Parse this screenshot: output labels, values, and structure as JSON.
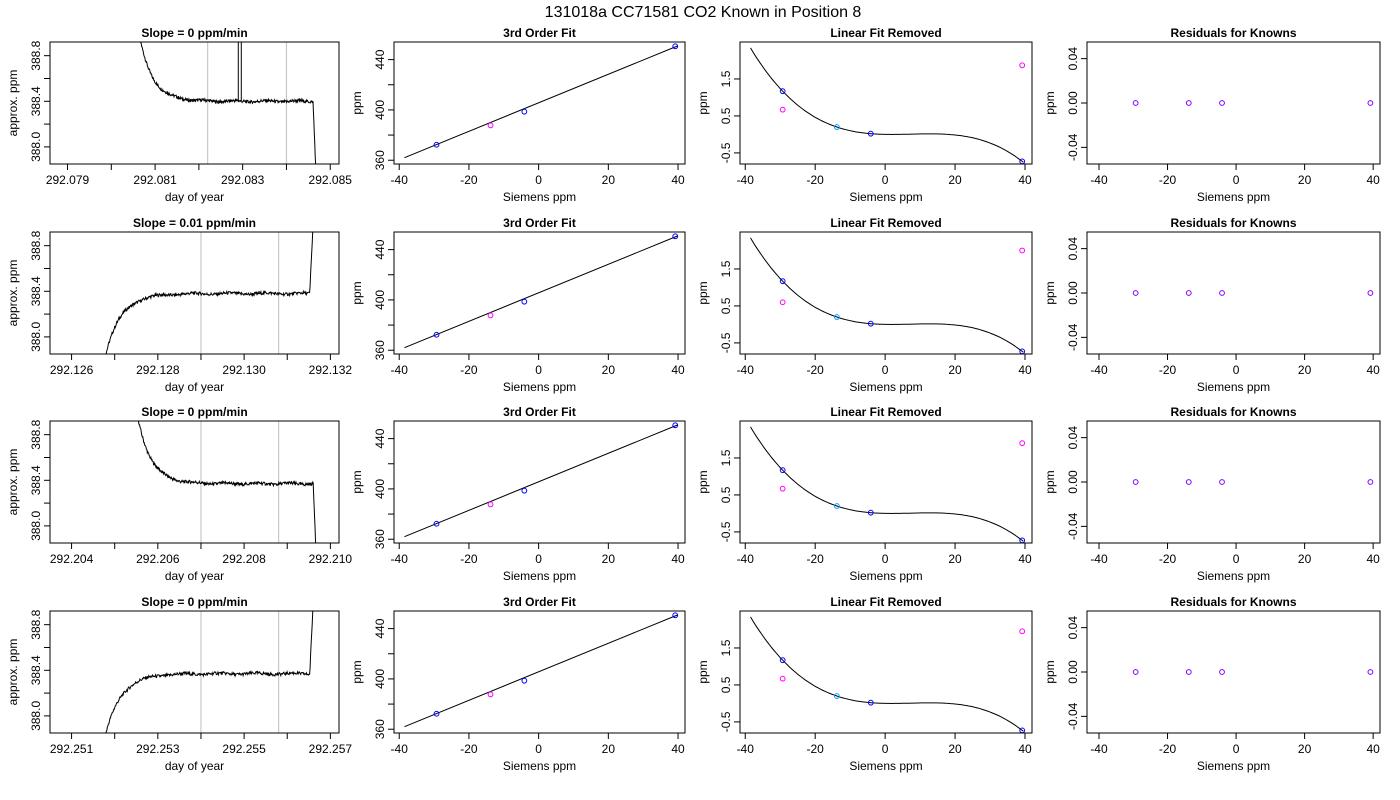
{
  "figure": {
    "title": "131018a     CC71581    CO2 Known in Position  8"
  },
  "colors": {
    "trace": "#000000",
    "grid_marker": "#c8c8c8",
    "point_blue": "#0000ff",
    "point_cyan": "#00a0ff",
    "point_magenta": "#ff00ff",
    "point_purple": "#8000ff"
  },
  "chart_data": [
    {
      "type": "line",
      "row": 1,
      "panel": "time",
      "title": "Slope =  0  ppm/min",
      "xlabel": "day of year",
      "ylabel": "approx. ppm",
      "xlim": [
        292.0786,
        292.0852
      ],
      "ylim": [
        387.85,
        388.92
      ],
      "xticks": [
        292.079,
        292.08,
        292.081,
        292.082,
        292.083,
        292.084,
        292.085
      ],
      "xtick_labels": [
        "292.079",
        "",
        "292.081",
        "",
        "292.083",
        "",
        "292.085"
      ],
      "yticks": [
        388.0,
        388.2,
        388.4,
        388.6,
        388.8
      ],
      "ytick_labels": [
        "388.0",
        "",
        "388.4",
        "",
        "388.8"
      ],
      "vlines": [
        292.0822,
        292.084
      ],
      "trace": {
        "x_start": 292.0805,
        "x_end": 292.0848,
        "rise": 0,
        "fall": 1,
        "plateau": 388.4,
        "spike_at": 292.0829
      }
    },
    {
      "type": "scatter",
      "row": 1,
      "panel": "fit",
      "title": "3rd Order Fit",
      "xlabel": "Siemens ppm",
      "ylabel": "ppm",
      "xlim": [
        -41.5,
        42
      ],
      "ylim": [
        357,
        454
      ],
      "xticks": [
        -40,
        -20,
        0,
        20,
        40
      ],
      "yticks": [
        360,
        380,
        400,
        420,
        440
      ],
      "ytick_labels": [
        "360",
        "",
        "400",
        "",
        "440"
      ],
      "points": [
        {
          "x": -29.3,
          "y": 372.3,
          "color": "blue"
        },
        {
          "x": -13.8,
          "y": 387.7,
          "color": "magenta"
        },
        {
          "x": -4.1,
          "y": 398.6,
          "color": "blue"
        },
        {
          "x": 39.2,
          "y": 450.6,
          "color": "blue"
        }
      ],
      "fit_line": {
        "x": [
          -38.5,
          40
        ],
        "y": [
          362.0,
          451.0
        ]
      }
    },
    {
      "type": "scatter",
      "row": 1,
      "panel": "linear_removed",
      "title": "Linear Fit Removed",
      "xlabel": "Siemens ppm",
      "ylabel": "ppm",
      "xlim": [
        -41.5,
        42
      ],
      "ylim": [
        -0.8,
        2.5
      ],
      "xticks": [
        -40,
        -20,
        0,
        20,
        40
      ],
      "yticks": [
        -0.5,
        0.5,
        1.5
      ],
      "points": [
        {
          "x": -29.3,
          "y": 1.17,
          "color": "blue"
        },
        {
          "x": -29.3,
          "y": 0.67,
          "color": "magenta"
        },
        {
          "x": -13.8,
          "y": 0.2,
          "color": "cyan"
        },
        {
          "x": -4.1,
          "y": 0.02,
          "color": "blue"
        },
        {
          "x": 39.2,
          "y": -0.73,
          "color": "blue"
        },
        {
          "x": 39.2,
          "y": 1.87,
          "color": "magenta"
        }
      ],
      "curve": {
        "x0": -38.5,
        "x1": 39.5,
        "anchors": [
          [
            -29.3,
            1.17
          ],
          [
            -13.8,
            0.2
          ],
          [
            -4.1,
            0.02
          ],
          [
            39.2,
            -0.73
          ]
        ]
      }
    },
    {
      "type": "scatter",
      "row": 1,
      "panel": "residuals",
      "title": "Residuals for Knowns",
      "xlabel": "Siemens ppm",
      "ylabel": "ppm",
      "xlim": [
        -43.5,
        42
      ],
      "ylim": [
        -0.055,
        0.055
      ],
      "xticks": [
        -40,
        -20,
        0,
        20,
        40
      ],
      "yticks": [
        -0.04,
        0.0,
        0.04
      ],
      "ytick_labels": [
        "-0.04",
        "0.00",
        "0.04"
      ],
      "points": [
        {
          "x": -29.3,
          "y": 0.0,
          "color": "purple"
        },
        {
          "x": -13.8,
          "y": 0.0,
          "color": "purple"
        },
        {
          "x": -4.1,
          "y": 0.0,
          "color": "purple"
        },
        {
          "x": 39.2,
          "y": 0.0,
          "color": "purple"
        }
      ]
    },
    {
      "type": "line",
      "row": 2,
      "panel": "time",
      "title": "Slope =  0.01  ppm/min",
      "xlabel": "day of year",
      "ylabel": "approx. ppm",
      "xlim": [
        292.1255,
        292.1322
      ],
      "ylim": [
        387.85,
        388.92
      ],
      "xticks": [
        292.126,
        292.127,
        292.128,
        292.129,
        292.13,
        292.131,
        292.132
      ],
      "xtick_labels": [
        "292.126",
        "",
        "292.128",
        "",
        "292.130",
        "",
        "292.132"
      ],
      "yticks": [
        388.0,
        388.2,
        388.4,
        388.6,
        388.8
      ],
      "ytick_labels": [
        "388.0",
        "",
        "388.4",
        "",
        "388.8"
      ],
      "vlines": [
        292.129,
        292.1308
      ],
      "trace": {
        "x_start": 292.1266,
        "x_end": 292.1317,
        "rise": 1,
        "fall": 0,
        "plateau": 388.38
      }
    },
    {
      "type": "scatter",
      "row": 2,
      "panel": "fit",
      "title": "3rd Order Fit",
      "xlabel": "Siemens ppm",
      "ylabel": "ppm",
      "xlim": [
        -41.5,
        42
      ],
      "ylim": [
        357,
        454
      ],
      "xticks": [
        -40,
        -20,
        0,
        20,
        40
      ],
      "yticks": [
        360,
        380,
        400,
        420,
        440
      ],
      "ytick_labels": [
        "360",
        "",
        "400",
        "",
        "440"
      ],
      "points": [
        {
          "x": -29.3,
          "y": 372.3,
          "color": "blue"
        },
        {
          "x": -13.8,
          "y": 387.7,
          "color": "magenta"
        },
        {
          "x": -4.1,
          "y": 398.6,
          "color": "blue"
        },
        {
          "x": 39.2,
          "y": 450.6,
          "color": "blue"
        }
      ],
      "fit_line": {
        "x": [
          -38.5,
          40
        ],
        "y": [
          362.0,
          451.0
        ]
      }
    },
    {
      "type": "scatter",
      "row": 2,
      "panel": "linear_removed",
      "title": "Linear Fit Removed",
      "xlabel": "Siemens ppm",
      "ylabel": "ppm",
      "xlim": [
        -41.5,
        42
      ],
      "ylim": [
        -0.8,
        2.5
      ],
      "xticks": [
        -40,
        -20,
        0,
        20,
        40
      ],
      "yticks": [
        -0.5,
        0.5,
        1.5
      ],
      "points": [
        {
          "x": -29.3,
          "y": 1.17,
          "color": "blue"
        },
        {
          "x": -29.3,
          "y": 0.6,
          "color": "magenta"
        },
        {
          "x": -13.8,
          "y": 0.2,
          "color": "cyan"
        },
        {
          "x": -4.1,
          "y": 0.02,
          "color": "blue"
        },
        {
          "x": 39.2,
          "y": -0.73,
          "color": "blue"
        },
        {
          "x": 39.2,
          "y": 2.0,
          "color": "magenta"
        }
      ],
      "curve": {
        "x0": -38.5,
        "x1": 39.5,
        "anchors": [
          [
            -29.3,
            1.17
          ],
          [
            -13.8,
            0.2
          ],
          [
            -4.1,
            0.02
          ],
          [
            39.2,
            -0.73
          ]
        ]
      }
    },
    {
      "type": "scatter",
      "row": 2,
      "panel": "residuals",
      "title": "Residuals for Knowns",
      "xlabel": "Siemens ppm",
      "ylabel": "ppm",
      "xlim": [
        -43.5,
        42
      ],
      "ylim": [
        -0.055,
        0.055
      ],
      "xticks": [
        -40,
        -20,
        0,
        20,
        40
      ],
      "yticks": [
        -0.04,
        0.0,
        0.04
      ],
      "ytick_labels": [
        "-0.04",
        "0.00",
        "0.04"
      ],
      "points": [
        {
          "x": -29.3,
          "y": 0.0,
          "color": "purple"
        },
        {
          "x": -13.8,
          "y": 0.0,
          "color": "purple"
        },
        {
          "x": -4.1,
          "y": 0.0,
          "color": "purple"
        },
        {
          "x": 39.2,
          "y": 0.0,
          "color": "purple"
        }
      ]
    },
    {
      "type": "line",
      "row": 3,
      "panel": "time",
      "title": "Slope =  0  ppm/min",
      "xlabel": "day of year",
      "ylabel": "approx. ppm",
      "xlim": [
        292.2035,
        292.2102
      ],
      "ylim": [
        387.85,
        388.92
      ],
      "xticks": [
        292.204,
        292.205,
        292.206,
        292.207,
        292.208,
        292.209,
        292.21
      ],
      "xtick_labels": [
        "292.204",
        "",
        "292.206",
        "",
        "292.208",
        "",
        "292.210"
      ],
      "yticks": [
        388.0,
        388.2,
        388.4,
        388.6,
        388.8
      ],
      "ytick_labels": [
        "388.0",
        "",
        "388.4",
        "",
        "388.8"
      ],
      "vlines": [
        292.207,
        292.2088
      ],
      "trace": {
        "x_start": 292.2054,
        "x_end": 292.2098,
        "rise": 0,
        "fall": 1,
        "plateau": 388.37
      }
    },
    {
      "type": "scatter",
      "row": 3,
      "panel": "fit",
      "title": "3rd Order Fit",
      "xlabel": "Siemens ppm",
      "ylabel": "ppm",
      "xlim": [
        -41.5,
        42
      ],
      "ylim": [
        357,
        454
      ],
      "xticks": [
        -40,
        -20,
        0,
        20,
        40
      ],
      "yticks": [
        360,
        380,
        400,
        420,
        440
      ],
      "ytick_labels": [
        "360",
        "",
        "400",
        "",
        "440"
      ],
      "points": [
        {
          "x": -29.3,
          "y": 372.3,
          "color": "blue"
        },
        {
          "x": -13.8,
          "y": 387.7,
          "color": "magenta"
        },
        {
          "x": -4.1,
          "y": 398.6,
          "color": "blue"
        },
        {
          "x": 39.2,
          "y": 450.6,
          "color": "blue"
        }
      ],
      "fit_line": {
        "x": [
          -38.5,
          40
        ],
        "y": [
          362.0,
          451.0
        ]
      }
    },
    {
      "type": "scatter",
      "row": 3,
      "panel": "linear_removed",
      "title": "Linear Fit Removed",
      "xlabel": "Siemens ppm",
      "ylabel": "ppm",
      "xlim": [
        -41.5,
        42
      ],
      "ylim": [
        -0.8,
        2.5
      ],
      "xticks": [
        -40,
        -20,
        0,
        20,
        40
      ],
      "yticks": [
        -0.5,
        0.5,
        1.5
      ],
      "points": [
        {
          "x": -29.3,
          "y": 1.17,
          "color": "blue"
        },
        {
          "x": -29.3,
          "y": 0.67,
          "color": "magenta"
        },
        {
          "x": -13.8,
          "y": 0.2,
          "color": "cyan"
        },
        {
          "x": -4.1,
          "y": 0.02,
          "color": "blue"
        },
        {
          "x": 39.2,
          "y": -0.73,
          "color": "blue"
        },
        {
          "x": 39.2,
          "y": 1.9,
          "color": "magenta"
        }
      ],
      "curve": {
        "x0": -38.5,
        "x1": 39.5,
        "anchors": [
          [
            -29.3,
            1.17
          ],
          [
            -13.8,
            0.2
          ],
          [
            -4.1,
            0.02
          ],
          [
            39.2,
            -0.73
          ]
        ]
      }
    },
    {
      "type": "scatter",
      "row": 3,
      "panel": "residuals",
      "title": "Residuals for Knowns",
      "xlabel": "Siemens ppm",
      "ylabel": "ppm",
      "xlim": [
        -43.5,
        42
      ],
      "ylim": [
        -0.055,
        0.055
      ],
      "xticks": [
        -40,
        -20,
        0,
        20,
        40
      ],
      "yticks": [
        -0.04,
        0.0,
        0.04
      ],
      "ytick_labels": [
        "-0.04",
        "0.00",
        "0.04"
      ],
      "points": [
        {
          "x": -29.3,
          "y": 0.0,
          "color": "purple"
        },
        {
          "x": -13.8,
          "y": 0.0,
          "color": "purple"
        },
        {
          "x": -4.1,
          "y": 0.0,
          "color": "purple"
        },
        {
          "x": 39.2,
          "y": 0.0,
          "color": "purple"
        }
      ]
    },
    {
      "type": "line",
      "row": 4,
      "panel": "time",
      "title": "Slope =  0  ppm/min",
      "xlabel": "day of year",
      "ylabel": "approx. ppm",
      "xlim": [
        292.2505,
        292.2572
      ],
      "ylim": [
        387.85,
        388.92
      ],
      "xticks": [
        292.251,
        292.252,
        292.253,
        292.254,
        292.255,
        292.256,
        292.257
      ],
      "xtick_labels": [
        "292.251",
        "",
        "292.253",
        "",
        "292.255",
        "",
        "292.257"
      ],
      "yticks": [
        388.0,
        388.2,
        388.4,
        388.6,
        388.8
      ],
      "ytick_labels": [
        "388.0",
        "",
        "388.4",
        "",
        "388.8"
      ],
      "vlines": [
        292.254,
        292.2558
      ],
      "trace": {
        "x_start": 292.2516,
        "x_end": 292.2567,
        "rise": 1,
        "fall": 0,
        "plateau": 388.37
      }
    },
    {
      "type": "scatter",
      "row": 4,
      "panel": "fit",
      "title": "3rd Order Fit",
      "xlabel": "Siemens ppm",
      "ylabel": "ppm",
      "xlim": [
        -41.5,
        42
      ],
      "ylim": [
        357,
        454
      ],
      "xticks": [
        -40,
        -20,
        0,
        20,
        40
      ],
      "yticks": [
        360,
        380,
        400,
        420,
        440
      ],
      "ytick_labels": [
        "360",
        "",
        "400",
        "",
        "440"
      ],
      "points": [
        {
          "x": -29.3,
          "y": 372.3,
          "color": "blue"
        },
        {
          "x": -13.8,
          "y": 387.7,
          "color": "magenta"
        },
        {
          "x": -4.1,
          "y": 398.6,
          "color": "blue"
        },
        {
          "x": 39.2,
          "y": 450.6,
          "color": "blue"
        }
      ],
      "fit_line": {
        "x": [
          -38.5,
          40
        ],
        "y": [
          362.0,
          451.0
        ]
      }
    },
    {
      "type": "scatter",
      "row": 4,
      "panel": "linear_removed",
      "title": "Linear Fit Removed",
      "xlabel": "Siemens ppm",
      "ylabel": "ppm",
      "xlim": [
        -41.5,
        42
      ],
      "ylim": [
        -0.8,
        2.5
      ],
      "xticks": [
        -40,
        -20,
        0,
        20,
        40
      ],
      "yticks": [
        -0.5,
        0.5,
        1.5
      ],
      "points": [
        {
          "x": -29.3,
          "y": 1.17,
          "color": "blue"
        },
        {
          "x": -29.3,
          "y": 0.67,
          "color": "magenta"
        },
        {
          "x": -13.8,
          "y": 0.2,
          "color": "cyan"
        },
        {
          "x": -4.1,
          "y": 0.02,
          "color": "blue"
        },
        {
          "x": 39.2,
          "y": -0.73,
          "color": "blue"
        },
        {
          "x": 39.2,
          "y": 1.95,
          "color": "magenta"
        }
      ],
      "curve": {
        "x0": -38.5,
        "x1": 39.5,
        "anchors": [
          [
            -29.3,
            1.17
          ],
          [
            -13.8,
            0.2
          ],
          [
            -4.1,
            0.02
          ],
          [
            39.2,
            -0.73
          ]
        ]
      }
    },
    {
      "type": "scatter",
      "row": 4,
      "panel": "residuals",
      "title": "Residuals for Knowns",
      "xlabel": "Siemens ppm",
      "ylabel": "ppm",
      "xlim": [
        -43.5,
        42
      ],
      "ylim": [
        -0.055,
        0.055
      ],
      "xticks": [
        -40,
        -20,
        0,
        20,
        40
      ],
      "yticks": [
        -0.04,
        0.0,
        0.04
      ],
      "ytick_labels": [
        "-0.04",
        "0.00",
        "0.04"
      ],
      "points": [
        {
          "x": -29.3,
          "y": 0.0,
          "color": "purple"
        },
        {
          "x": -13.8,
          "y": 0.0,
          "color": "purple"
        },
        {
          "x": -4.1,
          "y": 0.0,
          "color": "purple"
        },
        {
          "x": 39.2,
          "y": 0.0,
          "color": "purple"
        }
      ]
    }
  ]
}
